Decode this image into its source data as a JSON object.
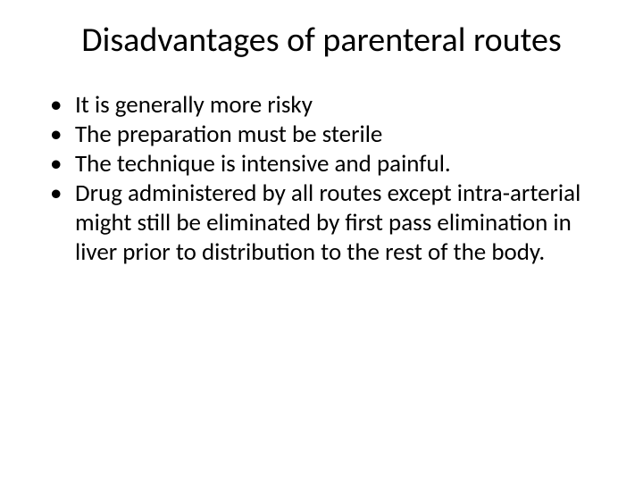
{
  "slide": {
    "title": "Disadvantages of parenteral routes",
    "background_color": "#ffffff",
    "text_color": "#000000",
    "title_fontsize": 38,
    "body_fontsize": 27,
    "bullets": [
      "It is generally more risky",
      "The preparation must be sterile",
      "The technique is intensive and painful.",
      "Drug administered by all routes except intra-arterial might still be eliminated by first pass elimination in liver prior to distribution to the rest of the body."
    ]
  }
}
